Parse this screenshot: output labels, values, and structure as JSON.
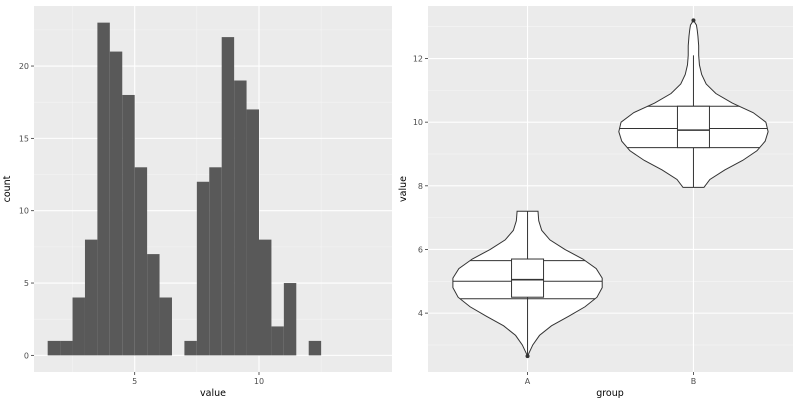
{
  "chart_data": [
    {
      "type": "histogram",
      "xlabel": "value",
      "ylabel": "count",
      "xlim": [
        0.95,
        15.35
      ],
      "ylim": [
        -1.15,
        24.15
      ],
      "x_ticks": [
        5,
        10
      ],
      "y_ticks": [
        0,
        5,
        10,
        15,
        20
      ],
      "bin_width": 0.5,
      "bins": [
        {
          "x0": 1.5,
          "x1": 2.0,
          "count": 1
        },
        {
          "x0": 2.0,
          "x1": 2.5,
          "count": 1
        },
        {
          "x0": 2.5,
          "x1": 3.0,
          "count": 4
        },
        {
          "x0": 3.0,
          "x1": 3.5,
          "count": 8
        },
        {
          "x0": 3.5,
          "x1": 4.0,
          "count": 23
        },
        {
          "x0": 4.0,
          "x1": 4.5,
          "count": 21
        },
        {
          "x0": 4.5,
          "x1": 5.0,
          "count": 18
        },
        {
          "x0": 5.0,
          "x1": 5.5,
          "count": 13
        },
        {
          "x0": 5.5,
          "x1": 6.0,
          "count": 7
        },
        {
          "x0": 6.0,
          "x1": 6.5,
          "count": 4
        },
        {
          "x0": 6.5,
          "x1": 7.0,
          "count": 0
        },
        {
          "x0": 7.0,
          "x1": 7.5,
          "count": 1
        },
        {
          "x0": 7.5,
          "x1": 8.0,
          "count": 12
        },
        {
          "x0": 8.0,
          "x1": 8.5,
          "count": 13
        },
        {
          "x0": 8.5,
          "x1": 9.0,
          "count": 22
        },
        {
          "x0": 9.0,
          "x1": 9.5,
          "count": 19
        },
        {
          "x0": 9.5,
          "x1": 10.0,
          "count": 17
        },
        {
          "x0": 10.0,
          "x1": 10.5,
          "count": 8
        },
        {
          "x0": 10.5,
          "x1": 11.0,
          "count": 2
        },
        {
          "x0": 11.0,
          "x1": 11.5,
          "count": 5
        },
        {
          "x0": 11.5,
          "x1": 12.0,
          "count": 0
        },
        {
          "x0": 12.0,
          "x1": 12.5,
          "count": 1
        }
      ],
      "fill_color": "#595959",
      "panel_color": "#ebebeb",
      "grid": true
    },
    {
      "type": "violin",
      "xlabel": "group",
      "ylabel": "value",
      "categories": [
        "A",
        "B"
      ],
      "ylim": [
        2.15,
        13.65
      ],
      "y_ticks": [
        4,
        6,
        8,
        10,
        12
      ],
      "violins": [
        {
          "group": "A",
          "profile": [
            [
              2.65,
              0.0
            ],
            [
              2.8,
              0.03
            ],
            [
              3.0,
              0.07
            ],
            [
              3.3,
              0.16
            ],
            [
              3.6,
              0.32
            ],
            [
              3.9,
              0.55
            ],
            [
              4.2,
              0.77
            ],
            [
              4.5,
              0.93
            ],
            [
              4.8,
              1.0
            ],
            [
              5.1,
              1.0
            ],
            [
              5.4,
              0.92
            ],
            [
              5.7,
              0.74
            ],
            [
              6.0,
              0.5
            ],
            [
              6.3,
              0.3
            ],
            [
              6.6,
              0.19
            ],
            [
              6.9,
              0.15
            ],
            [
              7.2,
              0.14
            ]
          ],
          "quantiles": [
            4.45,
            5.0,
            5.65
          ],
          "box": {
            "lower_whisker": 2.65,
            "q1": 4.5,
            "median": 5.05,
            "q3": 5.7,
            "upper_whisker": 7.2
          },
          "outliers": [
            2.65
          ]
        },
        {
          "group": "B",
          "profile": [
            [
              7.95,
              0.14
            ],
            [
              8.2,
              0.22
            ],
            [
              8.5,
              0.42
            ],
            [
              8.8,
              0.66
            ],
            [
              9.1,
              0.85
            ],
            [
              9.4,
              0.96
            ],
            [
              9.7,
              1.0
            ],
            [
              10.0,
              0.97
            ],
            [
              10.3,
              0.8
            ],
            [
              10.6,
              0.52
            ],
            [
              10.9,
              0.3
            ],
            [
              11.2,
              0.17
            ],
            [
              11.5,
              0.11
            ],
            [
              11.8,
              0.08
            ],
            [
              12.1,
              0.07
            ],
            [
              12.4,
              0.07
            ],
            [
              12.7,
              0.06
            ],
            [
              12.9,
              0.05
            ],
            [
              13.05,
              0.04
            ],
            [
              13.2,
              0.0
            ]
          ],
          "quantiles": [
            9.2,
            9.8,
            10.5
          ],
          "box": {
            "lower_whisker": 7.95,
            "q1": 9.2,
            "median": 9.75,
            "q3": 10.5,
            "upper_whisker": 12.1
          },
          "outliers": [
            13.2
          ]
        }
      ],
      "panel_color": "#ebebeb",
      "grid": true
    }
  ]
}
